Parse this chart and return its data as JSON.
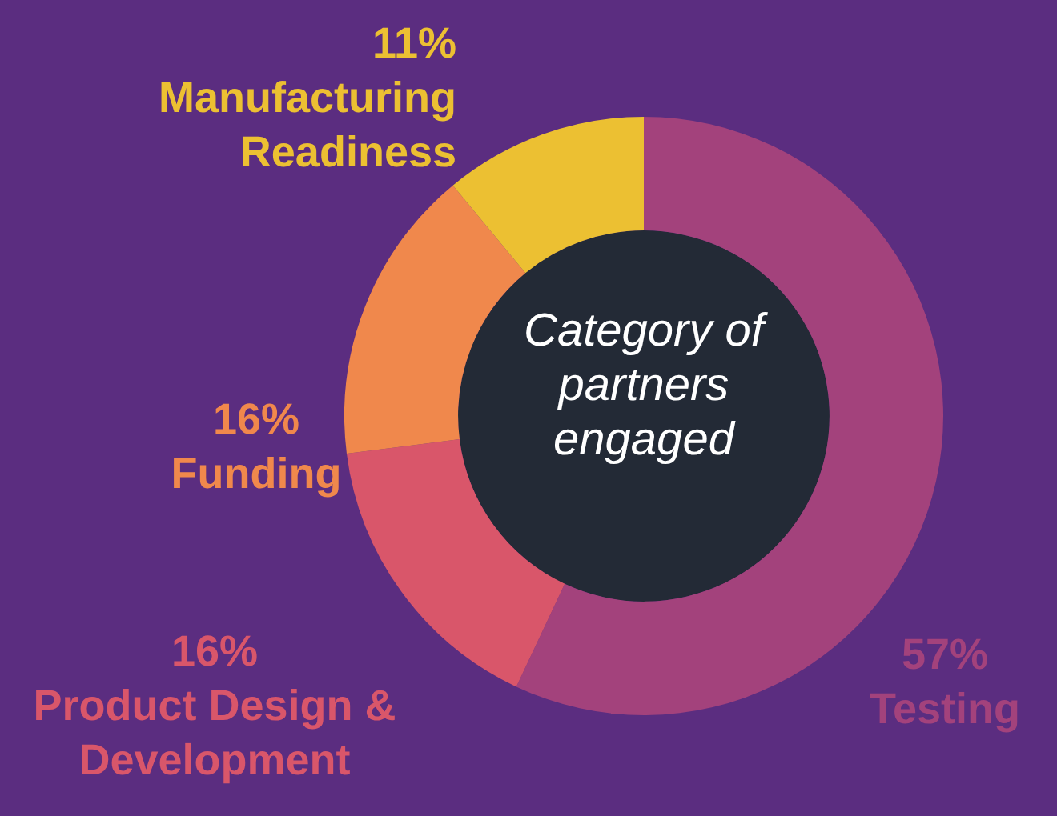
{
  "chart_data": {
    "type": "donut",
    "title": "Category of partners engaged",
    "categories": [
      "Testing",
      "Product Design & Development",
      "Funding",
      "Manufacturing Readiness"
    ],
    "values": [
      57,
      16,
      16,
      11
    ],
    "value_labels": [
      "57%",
      "16%",
      "16%",
      "11%"
    ],
    "colors": [
      "#a3427c",
      "#d9566a",
      "#f0884c",
      "#ecc032"
    ],
    "legend": false
  }
}
